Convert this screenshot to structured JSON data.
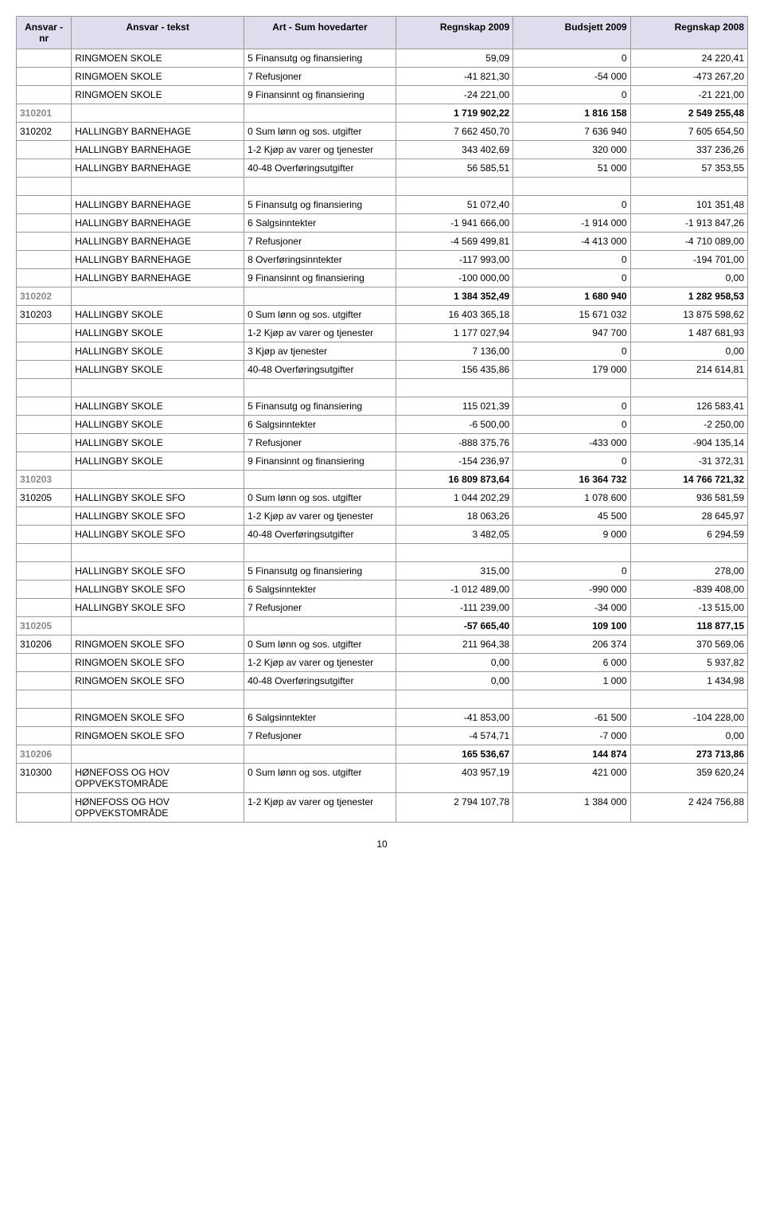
{
  "columns": {
    "c1": "Ansvar - nr",
    "c2": "Ansvar - tekst",
    "c3": "Art - Sum hovedarter",
    "c4": "Regnskap 2009",
    "c5": "Budsjett 2009",
    "c6": "Regnskap 2008"
  },
  "rows": [
    {
      "nr": "",
      "tekst": "RINGMOEN SKOLE",
      "art": "5 Finansutg og finansiering",
      "r2009": "59,09",
      "b2009": "0",
      "r2008": "24 220,41",
      "sum": false
    },
    {
      "nr": "",
      "tekst": "RINGMOEN SKOLE",
      "art": "7 Refusjoner",
      "r2009": "-41 821,30",
      "b2009": "-54 000",
      "r2008": "-473 267,20",
      "sum": false
    },
    {
      "nr": "",
      "tekst": "RINGMOEN SKOLE",
      "art": "9 Finansinnt og finansiering",
      "r2009": "-24 221,00",
      "b2009": "0",
      "r2008": "-21 221,00",
      "sum": false
    },
    {
      "nr": "310201",
      "tekst": "",
      "art": "",
      "r2009": "1 719 902,22",
      "b2009": "1 816 158",
      "r2008": "2 549 255,48",
      "sum": true
    },
    {
      "nr": "310202",
      "tekst": "HALLINGBY BARNEHAGE",
      "art": "0 Sum lønn og sos. utgifter",
      "r2009": "7 662 450,70",
      "b2009": "7 636 940",
      "r2008": "7 605 654,50",
      "sum": false
    },
    {
      "nr": "",
      "tekst": "HALLINGBY BARNEHAGE",
      "art": "1-2 Kjøp av varer og tjenester",
      "r2009": "343 402,69",
      "b2009": "320 000",
      "r2008": "337 236,26",
      "sum": false
    },
    {
      "nr": "",
      "tekst": "HALLINGBY BARNEHAGE",
      "art": "40-48 Overføringsutgifter",
      "r2009": "56 585,51",
      "b2009": "51 000",
      "r2008": "57 353,55",
      "sum": false
    },
    {
      "nr": "",
      "tekst": "HALLINGBY BARNEHAGE",
      "art": "5 Finansutg og finansiering",
      "r2009": "51 072,40",
      "b2009": "0",
      "r2008": "101 351,48",
      "sum": false
    },
    {
      "nr": "",
      "tekst": "HALLINGBY BARNEHAGE",
      "art": "6 Salgsinntekter",
      "r2009": "-1 941 666,00",
      "b2009": "-1 914 000",
      "r2008": "-1 913 847,26",
      "sum": false
    },
    {
      "nr": "",
      "tekst": "HALLINGBY BARNEHAGE",
      "art": "7 Refusjoner",
      "r2009": "-4 569 499,81",
      "b2009": "-4 413 000",
      "r2008": "-4 710 089,00",
      "sum": false
    },
    {
      "nr": "",
      "tekst": "HALLINGBY BARNEHAGE",
      "art": "8 Overføringsinntekter",
      "r2009": "-117 993,00",
      "b2009": "0",
      "r2008": "-194 701,00",
      "sum": false
    },
    {
      "nr": "",
      "tekst": "HALLINGBY BARNEHAGE",
      "art": "9 Finansinnt og finansiering",
      "r2009": "-100 000,00",
      "b2009": "0",
      "r2008": "0,00",
      "sum": false
    },
    {
      "nr": "310202",
      "tekst": "",
      "art": "",
      "r2009": "1 384 352,49",
      "b2009": "1 680 940",
      "r2008": "1 282 958,53",
      "sum": true
    },
    {
      "nr": "310203",
      "tekst": "HALLINGBY SKOLE",
      "art": "0 Sum lønn og sos. utgifter",
      "r2009": "16 403 365,18",
      "b2009": "15 671 032",
      "r2008": "13 875 598,62",
      "sum": false
    },
    {
      "nr": "",
      "tekst": "HALLINGBY SKOLE",
      "art": "1-2 Kjøp av varer og tjenester",
      "r2009": "1 177 027,94",
      "b2009": "947 700",
      "r2008": "1 487 681,93",
      "sum": false
    },
    {
      "nr": "",
      "tekst": "HALLINGBY SKOLE",
      "art": "3 Kjøp av tjenester",
      "r2009": "7 136,00",
      "b2009": "0",
      "r2008": "0,00",
      "sum": false
    },
    {
      "nr": "",
      "tekst": "HALLINGBY SKOLE",
      "art": "40-48 Overføringsutgifter",
      "r2009": "156 435,86",
      "b2009": "179 000",
      "r2008": "214 614,81",
      "sum": false
    },
    {
      "nr": "",
      "tekst": "HALLINGBY SKOLE",
      "art": "5 Finansutg og finansiering",
      "r2009": "115 021,39",
      "b2009": "0",
      "r2008": "126 583,41",
      "sum": false
    },
    {
      "nr": "",
      "tekst": "HALLINGBY SKOLE",
      "art": "6 Salgsinntekter",
      "r2009": "-6 500,00",
      "b2009": "0",
      "r2008": "-2 250,00",
      "sum": false
    },
    {
      "nr": "",
      "tekst": "HALLINGBY SKOLE",
      "art": "7 Refusjoner",
      "r2009": "-888 375,76",
      "b2009": "-433 000",
      "r2008": "-904 135,14",
      "sum": false
    },
    {
      "nr": "",
      "tekst": "HALLINGBY SKOLE",
      "art": "9 Finansinnt og finansiering",
      "r2009": "-154 236,97",
      "b2009": "0",
      "r2008": "-31 372,31",
      "sum": false
    },
    {
      "nr": "310203",
      "tekst": "",
      "art": "",
      "r2009": "16 809 873,64",
      "b2009": "16 364 732",
      "r2008": "14 766 721,32",
      "sum": true
    },
    {
      "nr": "310205",
      "tekst": "HALLINGBY SKOLE SFO",
      "art": "0 Sum lønn og sos. utgifter",
      "r2009": "1 044 202,29",
      "b2009": "1 078 600",
      "r2008": "936 581,59",
      "sum": false
    },
    {
      "nr": "",
      "tekst": "HALLINGBY SKOLE SFO",
      "art": "1-2 Kjøp av varer og tjenester",
      "r2009": "18 063,26",
      "b2009": "45 500",
      "r2008": "28 645,97",
      "sum": false
    },
    {
      "nr": "",
      "tekst": "HALLINGBY SKOLE SFO",
      "art": "40-48 Overføringsutgifter",
      "r2009": "3 482,05",
      "b2009": "9 000",
      "r2008": "6 294,59",
      "sum": false
    },
    {
      "nr": "",
      "tekst": "HALLINGBY SKOLE SFO",
      "art": "5 Finansutg og finansiering",
      "r2009": "315,00",
      "b2009": "0",
      "r2008": "278,00",
      "sum": false
    },
    {
      "nr": "",
      "tekst": "HALLINGBY SKOLE SFO",
      "art": "6 Salgsinntekter",
      "r2009": "-1 012 489,00",
      "b2009": "-990 000",
      "r2008": "-839 408,00",
      "sum": false
    },
    {
      "nr": "",
      "tekst": "HALLINGBY SKOLE SFO",
      "art": "7 Refusjoner",
      "r2009": "-111 239,00",
      "b2009": "-34 000",
      "r2008": "-13 515,00",
      "sum": false
    },
    {
      "nr": "310205",
      "tekst": "",
      "art": "",
      "r2009": "-57 665,40",
      "b2009": "109 100",
      "r2008": "118 877,15",
      "sum": true
    },
    {
      "nr": "310206",
      "tekst": "RINGMOEN SKOLE SFO",
      "art": "0 Sum lønn og sos. utgifter",
      "r2009": "211 964,38",
      "b2009": "206 374",
      "r2008": "370 569,06",
      "sum": false
    },
    {
      "nr": "",
      "tekst": "RINGMOEN SKOLE SFO",
      "art": "1-2 Kjøp av varer og tjenester",
      "r2009": "0,00",
      "b2009": "6 000",
      "r2008": "5 937,82",
      "sum": false
    },
    {
      "nr": "",
      "tekst": "RINGMOEN SKOLE SFO",
      "art": "40-48 Overføringsutgifter",
      "r2009": "0,00",
      "b2009": "1 000",
      "r2008": "1 434,98",
      "sum": false
    },
    {
      "nr": "",
      "tekst": "RINGMOEN SKOLE SFO",
      "art": "6 Salgsinntekter",
      "r2009": "-41 853,00",
      "b2009": "-61 500",
      "r2008": "-104 228,00",
      "sum": false
    },
    {
      "nr": "",
      "tekst": "RINGMOEN SKOLE SFO",
      "art": "7 Refusjoner",
      "r2009": "-4 574,71",
      "b2009": "-7 000",
      "r2008": "0,00",
      "sum": false
    },
    {
      "nr": "310206",
      "tekst": "",
      "art": "",
      "r2009": "165 536,67",
      "b2009": "144 874",
      "r2008": "273 713,86",
      "sum": true
    },
    {
      "nr": "310300",
      "tekst": "HØNEFOSS OG HOV OPPVEKSTOMRÅDE",
      "art": "0 Sum lønn og sos. utgifter",
      "r2009": "403 957,19",
      "b2009": "421 000",
      "r2008": "359 620,24",
      "sum": false
    },
    {
      "nr": "",
      "tekst": "HØNEFOSS OG HOV OPPVEKSTOMRÅDE",
      "art": "1-2 Kjøp av varer og tjenester",
      "r2009": "2 794 107,78",
      "b2009": "1 384 000",
      "r2008": "2 424 756,88",
      "sum": false
    }
  ],
  "pageNumber": "10",
  "spacerAfterIndices": [
    6,
    16,
    24,
    31
  ]
}
